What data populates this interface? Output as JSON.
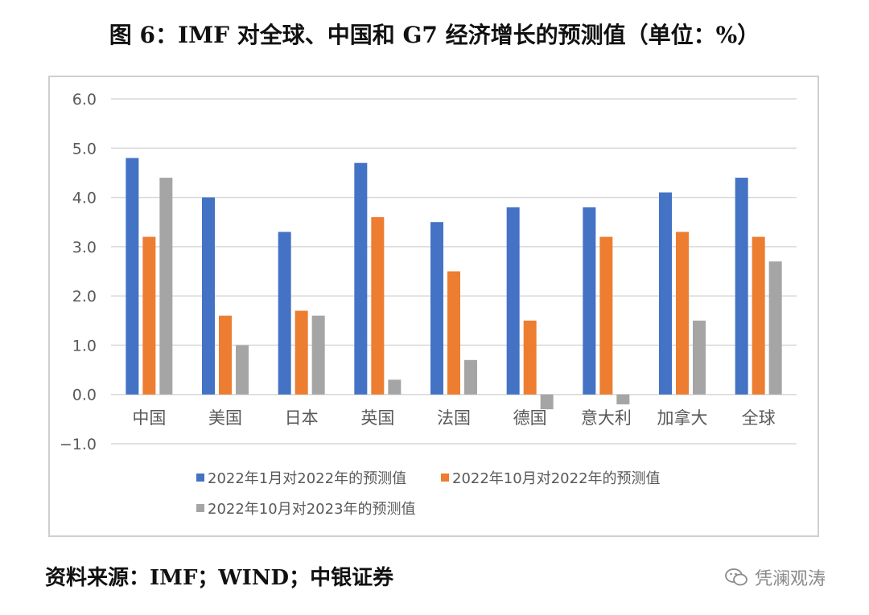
{
  "title": "图 6：IMF 对全球、中国和 G7 经济增长的预测值（单位：%）",
  "source": "资料来源：IMF；WIND；中银证券",
  "watermark": {
    "text": "凭澜观涛",
    "icon": "wechat-icon"
  },
  "chart_data": {
    "type": "bar",
    "title": "图 6：IMF 对全球、中国和 G7 经济增长的预测值（单位：%）",
    "xlabel": "",
    "ylabel": "",
    "categories": [
      "中国",
      "美国",
      "日本",
      "英国",
      "法国",
      "德国",
      "意大利",
      "加拿大",
      "全球"
    ],
    "ylim": [
      -1.0,
      6.0
    ],
    "yticks": [
      "6.0",
      "5.0",
      "4.0",
      "3.0",
      "2.0",
      "1.0",
      "0.0",
      "−1.0"
    ],
    "ytick_values": [
      6,
      5,
      4,
      3,
      2,
      1,
      0,
      -1
    ],
    "grid": true,
    "legend_position": "bottom",
    "series": [
      {
        "name": "2022年1月对2022年的预测值",
        "color": "#4472C4",
        "values": [
          4.8,
          4.0,
          3.3,
          4.7,
          3.5,
          3.8,
          3.8,
          4.1,
          4.4
        ]
      },
      {
        "name": "2022年10月对2022年的预测值",
        "color": "#ED7D31",
        "values": [
          3.2,
          1.6,
          1.7,
          3.6,
          2.5,
          1.5,
          3.2,
          3.3,
          3.2
        ]
      },
      {
        "name": "2022年10月对2023年的预测值",
        "color": "#A5A5A5",
        "values": [
          4.4,
          1.0,
          1.6,
          0.3,
          0.7,
          -0.3,
          -0.2,
          1.5,
          2.7
        ]
      }
    ]
  }
}
